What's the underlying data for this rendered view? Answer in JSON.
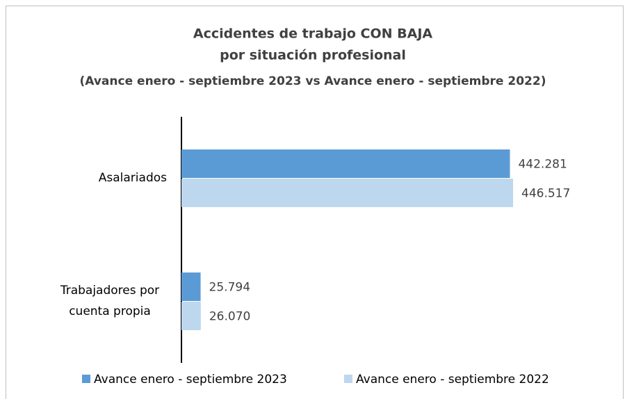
{
  "chart_data": {
    "type": "barh",
    "title": "Accidentes de trabajo CON BAJA",
    "subtitle": "por situación profesional",
    "subtitle2": "(Avance enero - septiembre 2023 vs Avance enero - septiembre 2022)",
    "categories": [
      "Asalariados",
      "Trabajadores por cuenta propia"
    ],
    "series": [
      {
        "name": "Avance enero - septiembre 2023",
        "color": "#5b9bd5",
        "values": [
          442281,
          25794
        ],
        "value_labels": [
          "442.281",
          "25.794"
        ]
      },
      {
        "name": "Avance enero - septiembre 2022",
        "color": "#bdd7ee",
        "values": [
          446517,
          26070
        ],
        "value_labels": [
          "446.517",
          "26.070"
        ]
      }
    ],
    "legend": "bottom"
  }
}
